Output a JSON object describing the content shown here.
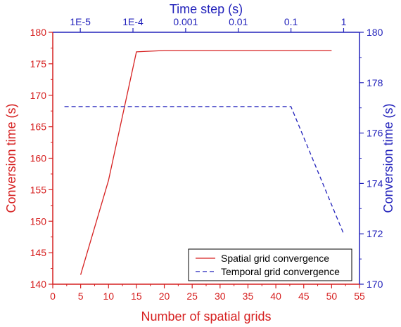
{
  "colors": {
    "spatial": "#d62020",
    "temporal": "#2222bb",
    "frame": "#000000",
    "background": "#ffffff"
  },
  "chart_data": {
    "type": "line",
    "grid": false,
    "legend_position": "bottom-right",
    "x_bottom": {
      "label": "Number of spatial grids",
      "range": [
        0,
        55
      ],
      "ticks": [
        0,
        5,
        10,
        15,
        20,
        25,
        30,
        35,
        40,
        45,
        50,
        55
      ],
      "tick_labels": [
        "0",
        "5",
        "10",
        "15",
        "20",
        "25",
        "30",
        "35",
        "40",
        "45",
        "50",
        "55"
      ]
    },
    "y_left": {
      "label": "Conversion time (s)",
      "range": [
        140,
        180
      ],
      "ticks": [
        140,
        145,
        150,
        155,
        160,
        165,
        170,
        175,
        180
      ],
      "tick_labels": [
        "140",
        "145",
        "150",
        "155",
        "160",
        "165",
        "170",
        "175",
        "180"
      ]
    },
    "x_top": {
      "label": "Time step (s)",
      "scale": "log",
      "range": [
        3e-06,
        2
      ],
      "ticks": [
        1e-05,
        0.0001,
        0.001,
        0.01,
        0.1,
        1
      ],
      "tick_labels": [
        "1E-5",
        "1E-4",
        "0.001",
        "0.01",
        "0.1",
        "1"
      ]
    },
    "y_right": {
      "label": "Conversion time (s)",
      "range": [
        170,
        180
      ],
      "ticks": [
        170,
        172,
        174,
        176,
        178,
        180
      ],
      "tick_labels": [
        "170",
        "172",
        "174",
        "176",
        "178",
        "180"
      ]
    },
    "series": [
      {
        "name": "Spatial grid convergence",
        "axes": "bottom-left",
        "style": "solid",
        "color": "#d62020",
        "x": [
          5,
          10,
          15,
          20,
          30,
          40,
          50
        ],
        "y": [
          141.5,
          156.5,
          176.9,
          177.1,
          177.1,
          177.1,
          177.1
        ]
      },
      {
        "name": "Temporal grid convergence",
        "axes": "top-right",
        "style": "dashed",
        "color": "#2222bb",
        "x": [
          5e-06,
          1e-05,
          0.0001,
          0.001,
          0.01,
          0.1,
          1
        ],
        "y": [
          177.05,
          177.05,
          177.05,
          177.05,
          177.05,
          177.05,
          172.0
        ]
      }
    ]
  }
}
